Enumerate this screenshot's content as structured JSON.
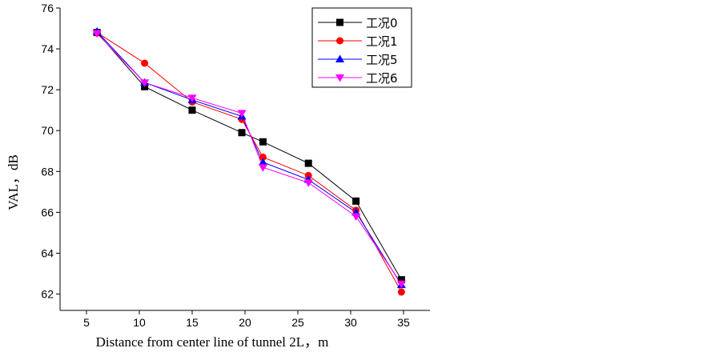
{
  "chart_data": {
    "type": "line",
    "title": "",
    "xlabel": "Distance from center line of tunnel 2L，m",
    "ylabel": "VAL，dB",
    "xlim": [
      2.5,
      37.5
    ],
    "ylim": [
      61.2,
      76
    ],
    "xticks": [
      5,
      10,
      15,
      20,
      25,
      30,
      35
    ],
    "yticks": [
      62,
      64,
      66,
      68,
      70,
      72,
      74,
      76
    ],
    "grid": false,
    "legend_position": "top-right",
    "series": [
      {
        "name": "工况0",
        "color": "#000000",
        "marker": "square",
        "x": [
          6,
          10.5,
          15,
          19.7,
          21.7,
          26,
          30.5,
          34.8
        ],
        "y": [
          74.8,
          72.15,
          71.0,
          69.9,
          69.45,
          68.4,
          66.55,
          62.7
        ]
      },
      {
        "name": "工况1",
        "color": "#ff0000",
        "marker": "circle",
        "x": [
          6,
          10.5,
          15,
          19.7,
          21.7,
          26,
          30.5,
          34.8
        ],
        "y": [
          74.8,
          73.3,
          71.4,
          70.55,
          68.7,
          67.8,
          66.1,
          62.1
        ]
      },
      {
        "name": "工况5",
        "color": "#0000ff",
        "marker": "triangle-up",
        "x": [
          6,
          10.5,
          15,
          19.7,
          21.7,
          26,
          30.5,
          34.8
        ],
        "y": [
          74.85,
          72.35,
          71.5,
          70.7,
          68.45,
          67.6,
          66.0,
          62.45
        ]
      },
      {
        "name": "工况6",
        "color": "#ff00ff",
        "marker": "triangle-down",
        "x": [
          6,
          10.5,
          15,
          19.7,
          21.7,
          26,
          30.5,
          34.8
        ],
        "y": [
          74.75,
          72.35,
          71.6,
          70.85,
          68.2,
          67.45,
          65.8,
          62.5
        ]
      }
    ]
  }
}
